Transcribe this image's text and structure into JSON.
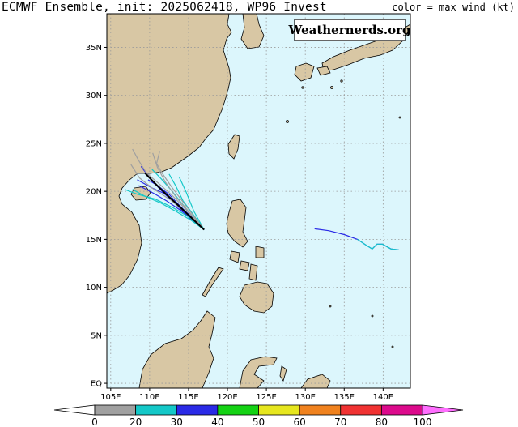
{
  "header": {
    "title": "ECMWF Ensemble, init: 2025062418, WP96 Invest",
    "legend_title": "color = max wind (kt)"
  },
  "watermark": "Weathernerds.org",
  "map": {
    "projection": "lat-lon",
    "lon_range": [
      104.5,
      143.5
    ],
    "lat_range": [
      -0.5,
      38.5
    ],
    "lat_ticks": [
      {
        "value": 35,
        "label": "35N"
      },
      {
        "value": 30,
        "label": "30N"
      },
      {
        "value": 25,
        "label": "25N"
      },
      {
        "value": 20,
        "label": "20N"
      },
      {
        "value": 15,
        "label": "15N"
      },
      {
        "value": 10,
        "label": "10N"
      },
      {
        "value": 5,
        "label": "5N"
      },
      {
        "value": 0,
        "label": "EQ"
      }
    ],
    "lon_ticks": [
      {
        "value": 105,
        "label": "105E"
      },
      {
        "value": 110,
        "label": "110E"
      },
      {
        "value": 115,
        "label": "115E"
      },
      {
        "value": 120,
        "label": "120E"
      },
      {
        "value": 125,
        "label": "125E"
      },
      {
        "value": 130,
        "label": "130E"
      },
      {
        "value": 135,
        "label": "135E"
      },
      {
        "value": 140,
        "label": "140E"
      }
    ],
    "grid": "dotted",
    "colors": {
      "ocean": "#dcf6fc",
      "land": "#d8c7a4",
      "coast": "#000000",
      "grid": "#9a9a9a"
    }
  },
  "colorbar": {
    "labels": [
      "0",
      "20",
      "30",
      "40",
      "50",
      "60",
      "70",
      "80",
      "100"
    ],
    "colors": [
      "#ffffff",
      "#a0a0a0",
      "#14c8c8",
      "#2a2ae6",
      "#14d214",
      "#e6e61e",
      "#f0821e",
      "#f03232",
      "#dc0a8c",
      "#ff6eff"
    ]
  },
  "tracks": [
    {
      "color": "#2a2ae6",
      "points": [
        [
          117.0,
          16.0
        ],
        [
          115.5,
          17.2
        ],
        [
          114.0,
          18.4
        ],
        [
          112.6,
          19.6
        ],
        [
          111.2,
          20.5
        ],
        [
          109.8,
          21.2
        ]
      ]
    },
    {
      "color": "#2a2ae6",
      "points": [
        [
          117.0,
          16.0
        ],
        [
          115.2,
          17.5
        ],
        [
          113.5,
          18.7
        ],
        [
          111.8,
          19.8
        ],
        [
          110.2,
          20.4
        ],
        [
          108.4,
          21.2
        ]
      ]
    },
    {
      "color": "#2a2ae6",
      "points": [
        [
          117.0,
          16.0
        ],
        [
          115.6,
          17.0
        ],
        [
          114.0,
          18.0
        ],
        [
          112.2,
          19.0
        ],
        [
          110.5,
          19.8
        ],
        [
          108.6,
          20.6
        ]
      ]
    },
    {
      "color": "#2a2ae6",
      "points": [
        [
          117.0,
          16.0
        ],
        [
          115.0,
          17.3
        ],
        [
          113.3,
          18.7
        ],
        [
          111.6,
          20.0
        ],
        [
          110.2,
          21.2
        ],
        [
          108.9,
          22.6
        ]
      ]
    },
    {
      "color": "#14c8c8",
      "points": [
        [
          117.0,
          16.0
        ],
        [
          115.4,
          17.5
        ],
        [
          114.0,
          18.9
        ],
        [
          112.8,
          20.1
        ],
        [
          111.5,
          21.3
        ],
        [
          110.3,
          22.3
        ]
      ]
    },
    {
      "color": "#14c8c8",
      "points": [
        [
          117.0,
          16.0
        ],
        [
          115.3,
          17.0
        ],
        [
          113.4,
          17.9
        ],
        [
          111.4,
          18.8
        ],
        [
          109.4,
          19.5
        ],
        [
          107.8,
          20.2
        ]
      ]
    },
    {
      "color": "#14c8c8",
      "points": [
        [
          117.0,
          16.0
        ],
        [
          115.6,
          17.6
        ],
        [
          114.3,
          19.0
        ],
        [
          113.4,
          20.5
        ],
        [
          112.5,
          21.8
        ]
      ]
    },
    {
      "color": "#14c8c8",
      "points": [
        [
          117.0,
          16.0
        ],
        [
          115.1,
          17.3
        ],
        [
          113.0,
          18.3
        ],
        [
          110.7,
          19.2
        ],
        [
          108.4,
          19.7
        ],
        [
          106.8,
          20.2
        ]
      ]
    },
    {
      "color": "#14c8c8",
      "points": [
        [
          117.0,
          16.0
        ],
        [
          115.7,
          17.9
        ],
        [
          114.7,
          19.9
        ],
        [
          113.8,
          21.5
        ]
      ]
    },
    {
      "color": "#a0a0a0",
      "points": [
        [
          117.0,
          16.0
        ],
        [
          115.0,
          17.8
        ],
        [
          113.0,
          19.5
        ],
        [
          111.2,
          20.8
        ],
        [
          109.6,
          21.9
        ],
        [
          108.6,
          23.2
        ],
        [
          107.8,
          24.4
        ]
      ]
    },
    {
      "color": "#a0a0a0",
      "points": [
        [
          117.0,
          16.0
        ],
        [
          115.2,
          17.7
        ],
        [
          113.4,
          19.4
        ],
        [
          112.0,
          21.0
        ],
        [
          111.0,
          22.5
        ],
        [
          110.4,
          24.0
        ]
      ]
    },
    {
      "color": "#a0a0a0",
      "points": [
        [
          117.0,
          16.0
        ],
        [
          114.9,
          17.6
        ],
        [
          112.7,
          19.1
        ],
        [
          110.4,
          20.3
        ],
        [
          108.7,
          21.4
        ],
        [
          107.6,
          22.8
        ]
      ]
    },
    {
      "color": "#a0a0a0",
      "points": [
        [
          117.0,
          16.0
        ],
        [
          115.5,
          17.6
        ],
        [
          114.0,
          19.2
        ],
        [
          112.7,
          20.6
        ],
        [
          111.6,
          21.9
        ],
        [
          110.9,
          22.9
        ],
        [
          111.3,
          24.2
        ]
      ]
    },
    {
      "color": "#000000",
      "points": [
        [
          117.0,
          16.0
        ],
        [
          115.3,
          17.3
        ],
        [
          113.6,
          18.6
        ],
        [
          112.0,
          19.8
        ],
        [
          110.6,
          20.9
        ],
        [
          109.4,
          21.9
        ]
      ]
    },
    {
      "color": "#2a2ae6",
      "points": [
        [
          131.2,
          16.1
        ],
        [
          133.0,
          15.9
        ],
        [
          135.0,
          15.5
        ],
        [
          136.7,
          15.0
        ],
        [
          137.8,
          14.4
        ],
        [
          138.6,
          14.0
        ],
        [
          139.2,
          14.5
        ],
        [
          139.9,
          14.5
        ],
        [
          141.0,
          14.0
        ],
        [
          142.0,
          13.9
        ]
      ]
    },
    {
      "color": "#14c8c8",
      "points": [
        [
          136.7,
          15.0
        ],
        [
          137.8,
          14.4
        ],
        [
          138.6,
          14.0
        ],
        [
          139.2,
          14.5
        ],
        [
          139.9,
          14.5
        ],
        [
          141.0,
          14.0
        ],
        [
          142.0,
          13.9
        ]
      ]
    }
  ]
}
